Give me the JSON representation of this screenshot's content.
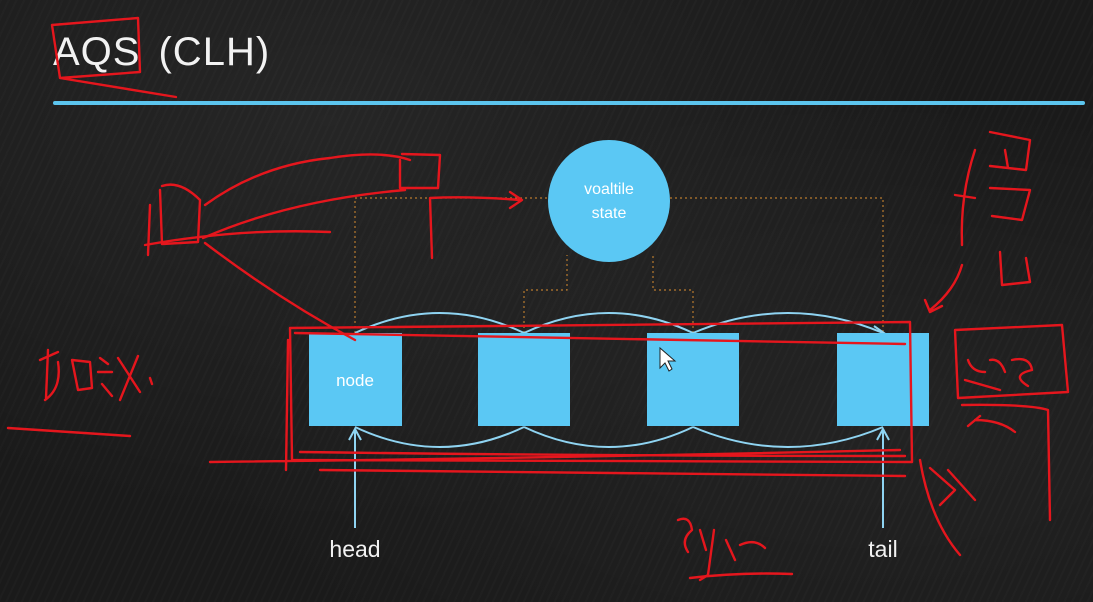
{
  "slide": {
    "title": "AQS",
    "title_sub": "(CLH)"
  },
  "state": {
    "line1": "voaltile",
    "line2": "state"
  },
  "queue": {
    "nodes": [
      {
        "label": "node"
      },
      {
        "label": ""
      },
      {
        "label": ""
      },
      {
        "label": ""
      }
    ],
    "head_label": "head",
    "tail_label": "tail"
  },
  "colors": {
    "board": "#1a1a1a",
    "accent_blue": "#5cc5ee",
    "node_fill": "#5bc8f4",
    "link_line": "#8fd4f2",
    "dotted_line": "#b87a2e",
    "annotation_red": "#e5161d",
    "text": "#f2f2f2"
  }
}
